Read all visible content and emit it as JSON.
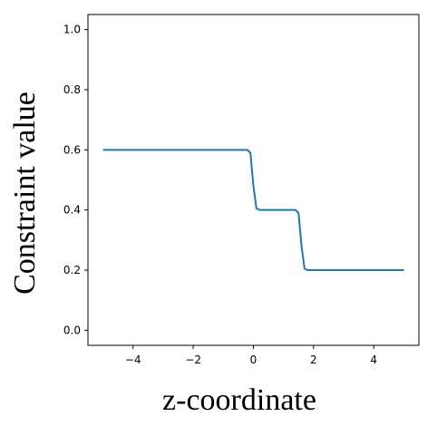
{
  "chart_data": {
    "type": "line",
    "xlabel": "z-coordinate",
    "ylabel": "Constraint value",
    "x": [
      -5,
      -0.2,
      -0.1,
      0,
      0.1,
      0.2,
      1.4,
      1.5,
      1.6,
      1.7,
      1.8,
      5
    ],
    "series": [
      {
        "color": "#1f77b4",
        "values": [
          0.6,
          0.6,
          0.59,
          0.48,
          0.405,
          0.4,
          0.4,
          0.39,
          0.28,
          0.205,
          0.2,
          0.2
        ]
      }
    ],
    "xlim": [
      -5.5,
      5.5
    ],
    "xticks": [
      {
        "value": -4,
        "label": "−4"
      },
      {
        "value": -2,
        "label": "−2"
      },
      0,
      2,
      4
    ],
    "ylim": [
      -0.05,
      1.05
    ],
    "yticks": [
      {
        "value": 0,
        "label": "0.0"
      },
      0.2,
      0.4,
      0.6,
      0.8,
      {
        "value": 1,
        "label": "1.0"
      }
    ]
  }
}
